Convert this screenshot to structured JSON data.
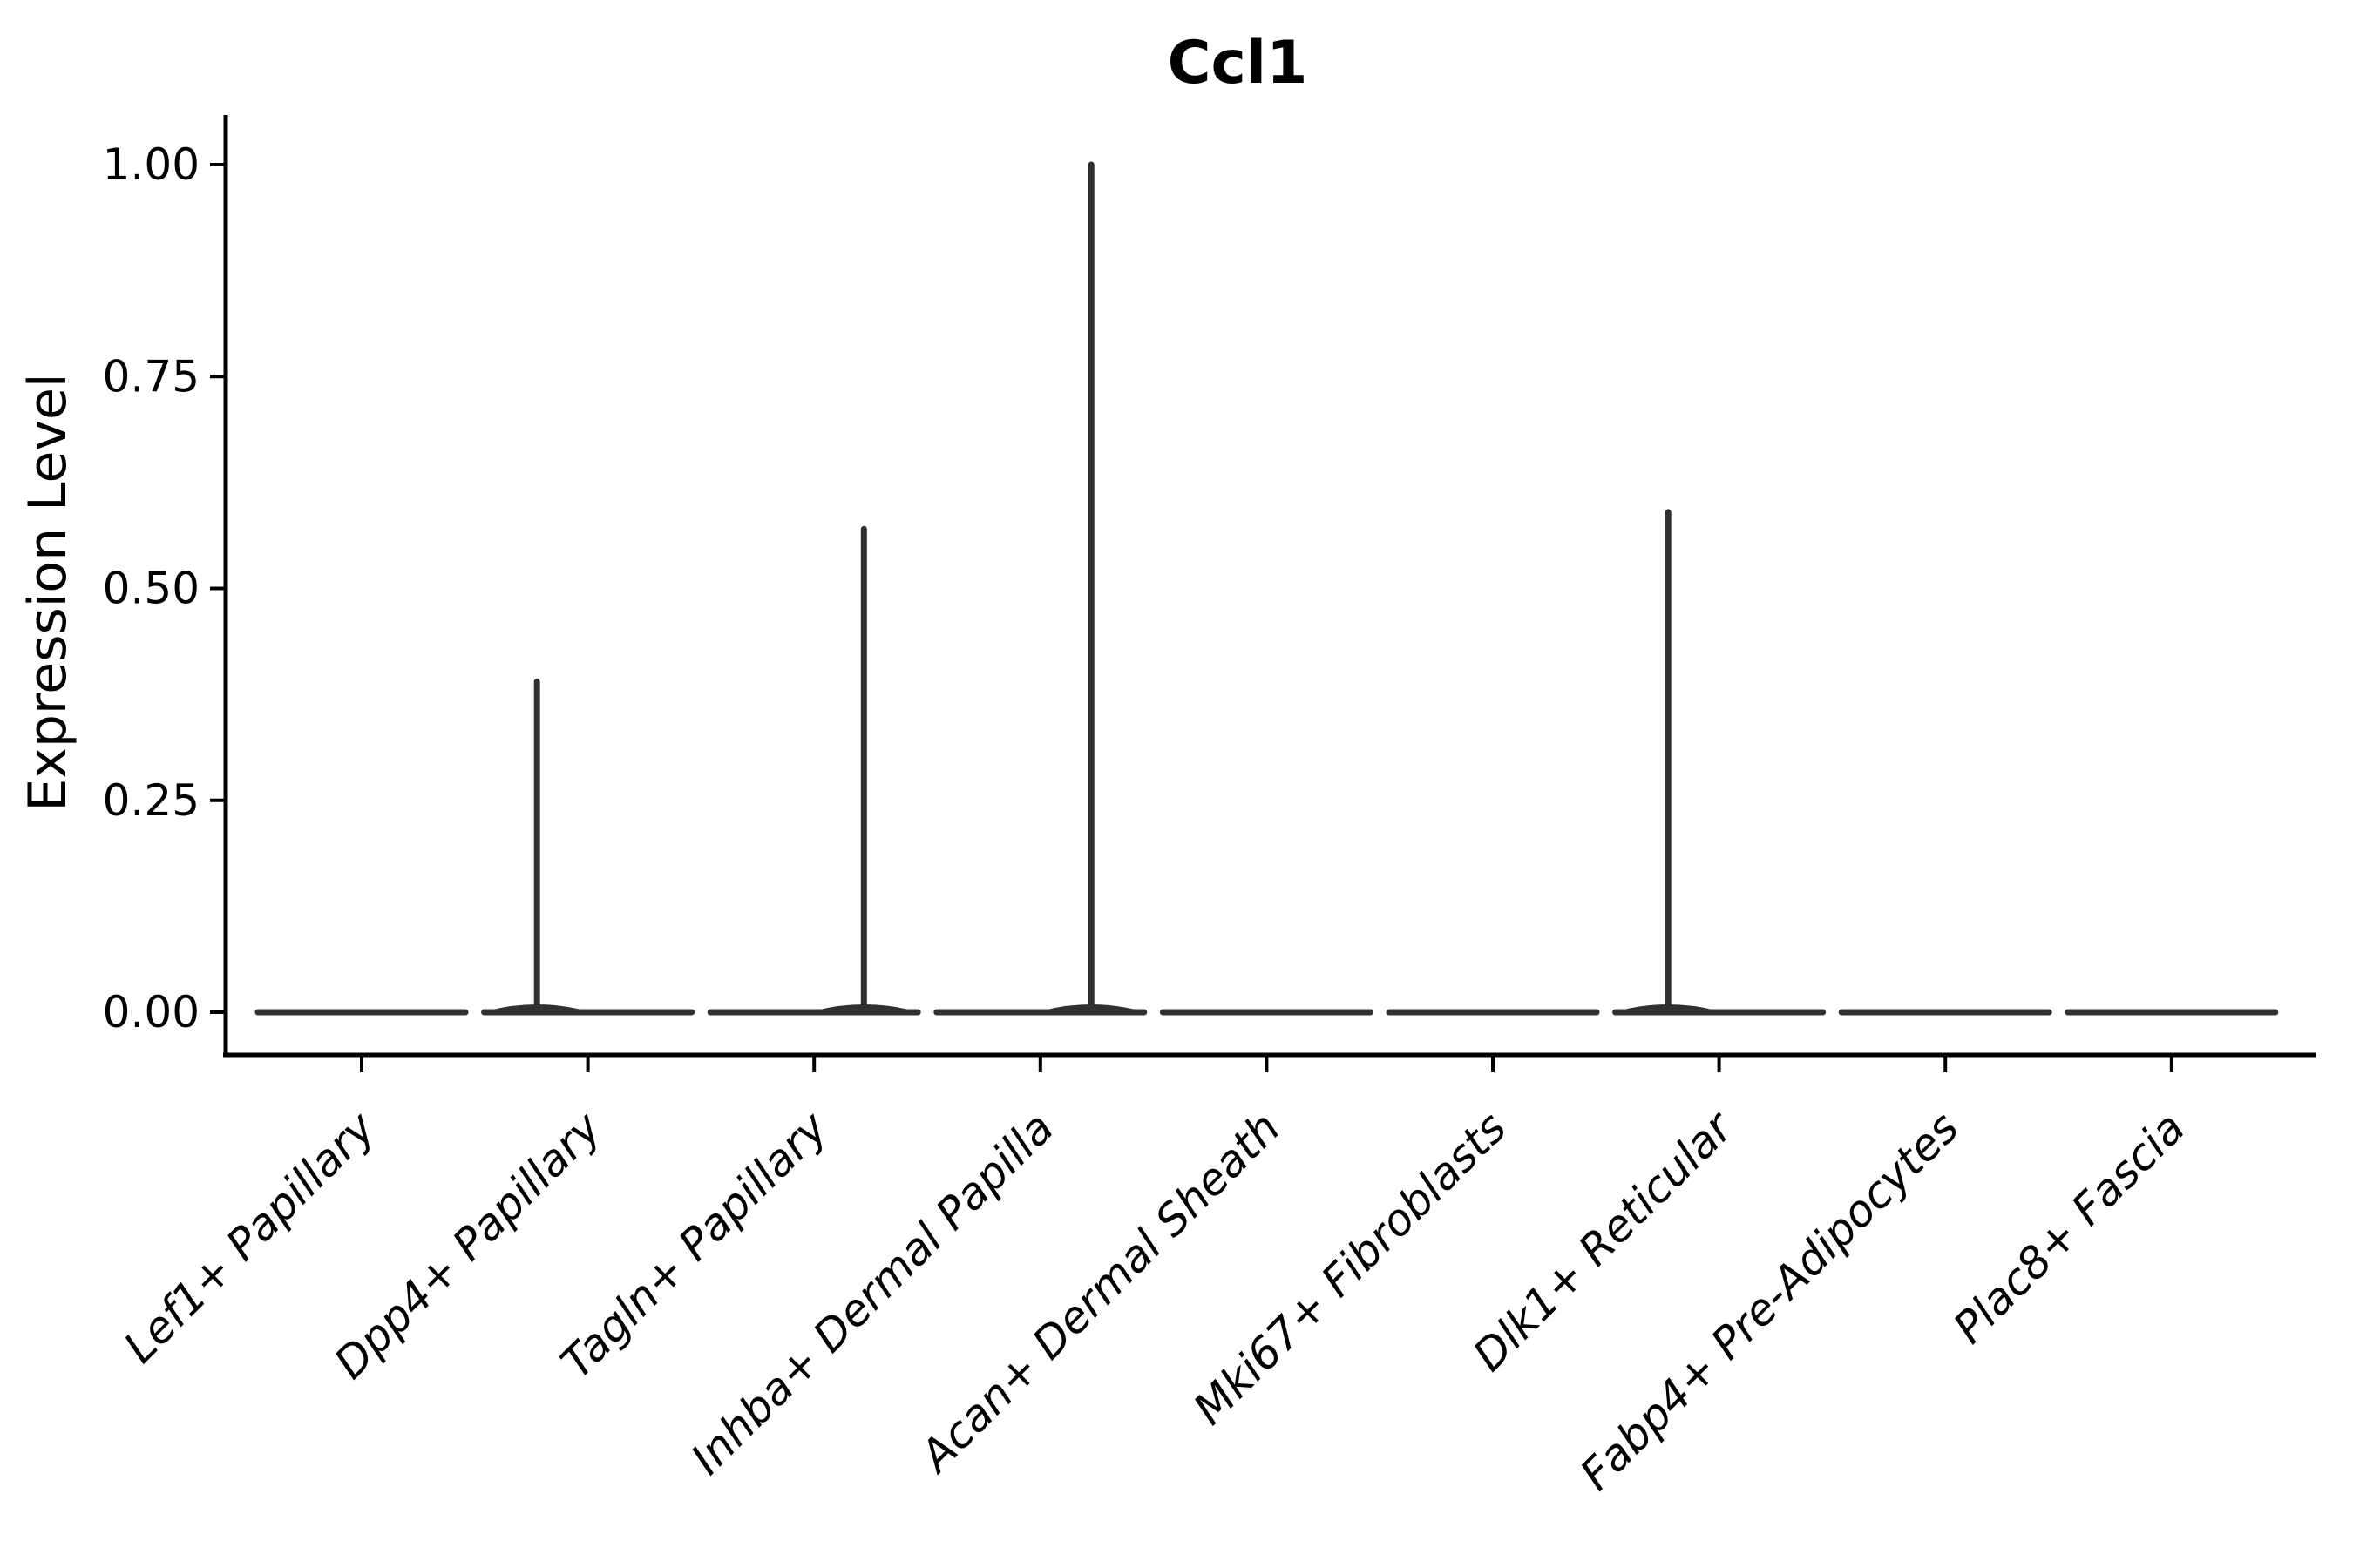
{
  "figure": {
    "title": "Ccl1",
    "background_color": "#ffffff",
    "axis_color": "#000000",
    "text_color": "#000000",
    "violin_color": "#303030"
  },
  "chart_data": {
    "type": "violin",
    "title": "Ccl1",
    "xlabel": "",
    "ylabel": "Expression Level",
    "ylim": [
      0.0,
      1.0
    ],
    "grid": false,
    "legend": "none",
    "yticks": [
      "0.00",
      "0.25",
      "0.50",
      "0.75",
      "1.00"
    ],
    "ytick_values": [
      0.0,
      0.25,
      0.5,
      0.75,
      1.0
    ],
    "categories": [
      "Lef1+ Papillary",
      "Dpp4+ Papillary",
      "Tagln+ Papillary",
      "Inhba+ Dermal Papilla",
      "Acan+ Dermal Sheath",
      "Mki67+ Fibroblasts",
      "Dlk1+ Reticular",
      "Fabp4+ Pre-Adipocytes",
      "Plac8+ Fascia"
    ],
    "series": [
      {
        "name": "Lef1+ Papillary",
        "median": 0.0,
        "baseline_value": 0.0,
        "spike_value": null,
        "spike_offset_frac": 0
      },
      {
        "name": "Dpp4+ Papillary",
        "median": 0.0,
        "baseline_value": 0.0,
        "spike_value": 0.39,
        "spike_offset_frac": -0.225
      },
      {
        "name": "Tagln+ Papillary",
        "median": 0.0,
        "baseline_value": 0.0,
        "spike_value": 0.57,
        "spike_offset_frac": 0.22
      },
      {
        "name": "Inhba+ Dermal Papilla",
        "median": 0.0,
        "baseline_value": 0.0,
        "spike_value": 1.0,
        "spike_offset_frac": 0.225
      },
      {
        "name": "Acan+ Dermal Sheath",
        "median": 0.0,
        "baseline_value": 0.0,
        "spike_value": null,
        "spike_offset_frac": 0
      },
      {
        "name": "Mki67+ Fibroblasts",
        "median": 0.0,
        "baseline_value": 0.0,
        "spike_value": null,
        "spike_offset_frac": 0
      },
      {
        "name": "Dlk1+ Reticular",
        "median": 0.0,
        "baseline_value": 0.0,
        "spike_value": 0.59,
        "spike_offset_frac": -0.225
      },
      {
        "name": "Fabp4+ Pre-Adipocytes",
        "median": 0.0,
        "baseline_value": 0.0,
        "spike_value": null,
        "spike_offset_frac": 0
      },
      {
        "name": "Plac8+ Fascia",
        "median": 0.0,
        "baseline_value": 0.0,
        "spike_value": null,
        "spike_offset_frac": 0
      }
    ]
  }
}
